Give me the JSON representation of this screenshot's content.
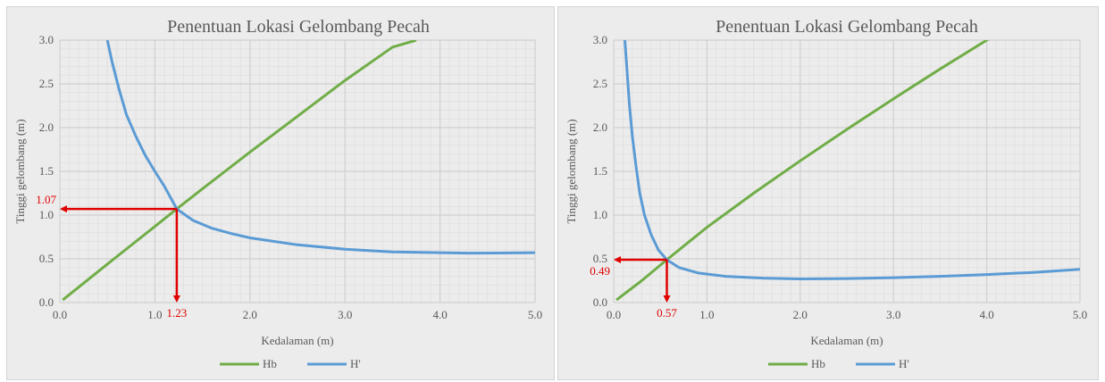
{
  "colors": {
    "hb": "#70ad47",
    "hprime": "#5b9bd5",
    "annotation": "#e00000",
    "gridMajor": "#d0d0d0",
    "gridMinor": "#e1e1e1",
    "background": "#ececec"
  },
  "chart_data": [
    {
      "type": "line",
      "title": "Penentuan Lokasi Gelombang Pecah",
      "xlabel": "Kedalaman (m)",
      "ylabel": "Tinggi gelombang (m)",
      "xlim": [
        0,
        5
      ],
      "ylim": [
        0,
        3
      ],
      "xticks": [
        0,
        1,
        2,
        3,
        4,
        5
      ],
      "xtick_labels": [
        "0.0",
        "1.0",
        "2.0",
        "3.0",
        "4.0",
        "5.0"
      ],
      "yticks": [
        0,
        0.5,
        1,
        1.5,
        2,
        2.5,
        3
      ],
      "ytick_labels": [
        "0.0",
        "0.5",
        "1.0",
        "1.5",
        "2.0",
        "2.5",
        "3.0"
      ],
      "grid": "major and minor",
      "legend": "bottom",
      "series": [
        {
          "name": "Hb",
          "color": "#70ad47",
          "x": [
            0.03,
            0.5,
            1.0,
            1.23,
            1.5,
            2.0,
            2.5,
            3.0,
            3.5,
            3.75
          ],
          "y": [
            0.03,
            0.44,
            0.87,
            1.07,
            1.3,
            1.72,
            2.13,
            2.54,
            2.92,
            3.0
          ]
        },
        {
          "name": "H'",
          "color": "#5b9bd5",
          "x": [
            0.5,
            0.55,
            0.62,
            0.7,
            0.8,
            0.9,
            1.0,
            1.1,
            1.23,
            1.4,
            1.6,
            1.8,
            2.0,
            2.5,
            3.0,
            3.5,
            4.0,
            4.3,
            4.6,
            5.0
          ],
          "y": [
            3.0,
            2.75,
            2.45,
            2.15,
            1.9,
            1.68,
            1.5,
            1.33,
            1.07,
            0.94,
            0.85,
            0.79,
            0.74,
            0.66,
            0.61,
            0.58,
            0.57,
            0.565,
            0.566,
            0.57
          ]
        }
      ],
      "annotations": [
        {
          "type": "arrow-x",
          "from": [
            1.23,
            1.07
          ],
          "to": [
            0,
            1.07
          ],
          "label": "1.07"
        },
        {
          "type": "arrow-y",
          "from": [
            1.23,
            1.07
          ],
          "to": [
            1.23,
            0
          ],
          "label": "1.23"
        }
      ]
    },
    {
      "type": "line",
      "title": "Penentuan Lokasi Gelombang Pecah",
      "xlabel": "Kedalaman (m)",
      "ylabel": "Tinggi gelombang (m)",
      "xlim": [
        0,
        5
      ],
      "ylim": [
        0,
        3
      ],
      "xticks": [
        0,
        1,
        2,
        3,
        4,
        5
      ],
      "xtick_labels": [
        "0.0",
        "1.0",
        "2.0",
        "3.0",
        "4.0",
        "5.0"
      ],
      "yticks": [
        0,
        0.5,
        1,
        1.5,
        2,
        2.5,
        3
      ],
      "ytick_labels": [
        "0.0",
        "0.5",
        "1.0",
        "1.5",
        "2.0",
        "2.5",
        "3.0"
      ],
      "grid": "major and minor",
      "legend": "bottom",
      "series": [
        {
          "name": "Hb",
          "color": "#70ad47",
          "x": [
            0.03,
            0.3,
            0.57,
            1.0,
            1.5,
            2.0,
            2.5,
            3.0,
            3.5,
            4.0,
            4.1
          ],
          "y": [
            0.03,
            0.25,
            0.49,
            0.86,
            1.25,
            1.62,
            1.98,
            2.33,
            2.67,
            3.0,
            3.06
          ]
        },
        {
          "name": "H'",
          "color": "#5b9bd5",
          "x": [
            0.12,
            0.14,
            0.17,
            0.2,
            0.24,
            0.28,
            0.33,
            0.4,
            0.48,
            0.57,
            0.7,
            0.9,
            1.2,
            1.6,
            2.0,
            2.5,
            3.0,
            3.5,
            4.0,
            4.5,
            5.0
          ],
          "y": [
            3.0,
            2.7,
            2.25,
            1.9,
            1.55,
            1.25,
            1.0,
            0.78,
            0.6,
            0.49,
            0.4,
            0.34,
            0.3,
            0.28,
            0.27,
            0.275,
            0.285,
            0.3,
            0.32,
            0.345,
            0.38
          ]
        }
      ],
      "annotations": [
        {
          "type": "arrow-x",
          "from": [
            0.57,
            0.49
          ],
          "to": [
            0,
            0.49
          ],
          "label": "0.49"
        },
        {
          "type": "arrow-y",
          "from": [
            0.57,
            0.49
          ],
          "to": [
            0.57,
            0
          ],
          "label": "0.57"
        }
      ]
    }
  ]
}
